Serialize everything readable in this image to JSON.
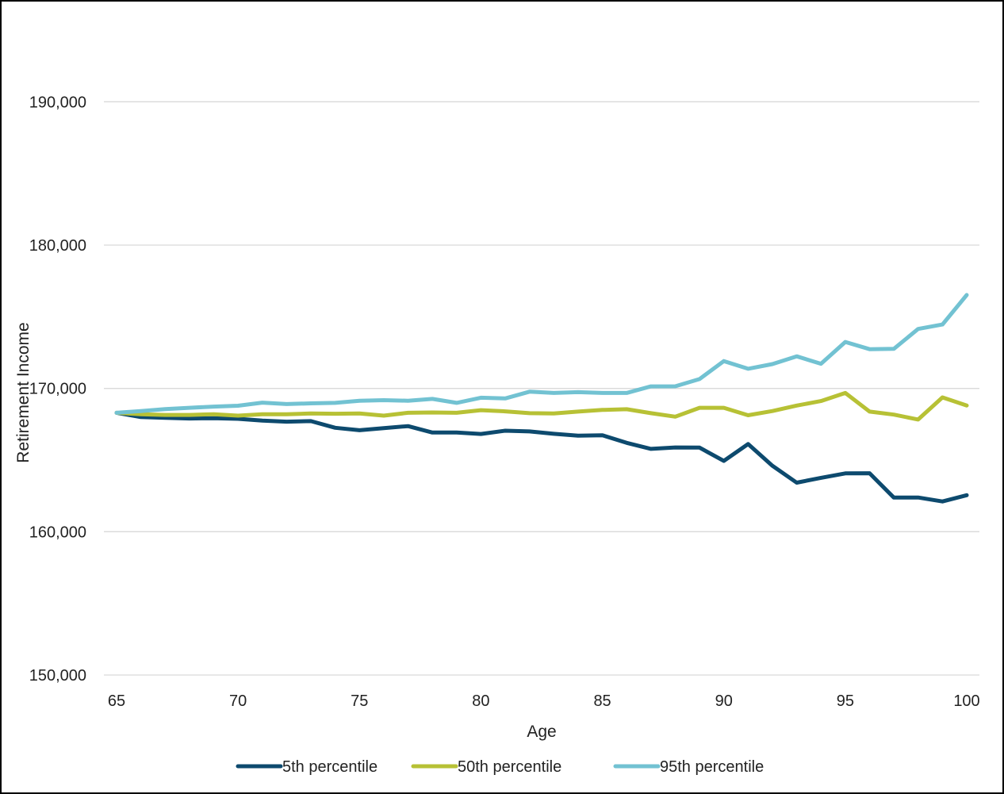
{
  "chart_data": {
    "type": "line",
    "title": "",
    "xlabel": "Age",
    "ylabel": "Retirement Income",
    "xlim": [
      65,
      100
    ],
    "ylim": [
      150000,
      195000
    ],
    "x_ticks": [
      65,
      70,
      75,
      80,
      85,
      90,
      95,
      100
    ],
    "x_tick_labels": [
      "65",
      "70",
      "75",
      "80",
      "85",
      "90",
      "95",
      "100"
    ],
    "y_ticks": [
      150000,
      160000,
      170000,
      180000,
      190000
    ],
    "y_tick_labels": [
      "150,000",
      "160,000",
      "170,000",
      "180,000",
      "190,000"
    ],
    "grid": "horizontal",
    "legend_position": "bottom",
    "x": [
      65,
      66,
      67,
      68,
      69,
      70,
      71,
      72,
      73,
      74,
      75,
      76,
      77,
      78,
      79,
      80,
      81,
      82,
      83,
      84,
      85,
      86,
      87,
      88,
      89,
      90,
      91,
      92,
      93,
      94,
      95,
      96,
      97,
      98,
      99,
      100
    ],
    "series": [
      {
        "name": "5th percentile",
        "color": "#0d4a6e",
        "values": [
          168300,
          168000,
          167950,
          167900,
          167920,
          167880,
          167750,
          167680,
          167720,
          167250,
          167080,
          167230,
          167370,
          166920,
          166920,
          166820,
          167050,
          167000,
          166830,
          166700,
          166730,
          166200,
          165780,
          165880,
          165870,
          164940,
          166120,
          164600,
          163420,
          163760,
          164070,
          164080,
          162380,
          162390,
          162110,
          162550
        ]
      },
      {
        "name": "50th percentile",
        "color": "#b7c135",
        "values": [
          168300,
          168200,
          168150,
          168150,
          168200,
          168100,
          168200,
          168200,
          168250,
          168230,
          168250,
          168100,
          168300,
          168320,
          168300,
          168480,
          168400,
          168270,
          168250,
          168380,
          168500,
          168550,
          168270,
          168030,
          168650,
          168650,
          168130,
          168420,
          168800,
          169120,
          169680,
          168380,
          168170,
          167830,
          169370,
          168810
        ]
      },
      {
        "name": "95th percentile",
        "color": "#72c2d2",
        "values": [
          168300,
          168420,
          168560,
          168650,
          168730,
          168790,
          169010,
          168910,
          168960,
          168990,
          169140,
          169180,
          169140,
          169270,
          168990,
          169350,
          169300,
          169770,
          169680,
          169740,
          169680,
          169680,
          170140,
          170150,
          170650,
          171910,
          171370,
          171700,
          172240,
          171720,
          173240,
          172740,
          172760,
          174150,
          174460,
          176520
        ]
      }
    ]
  }
}
